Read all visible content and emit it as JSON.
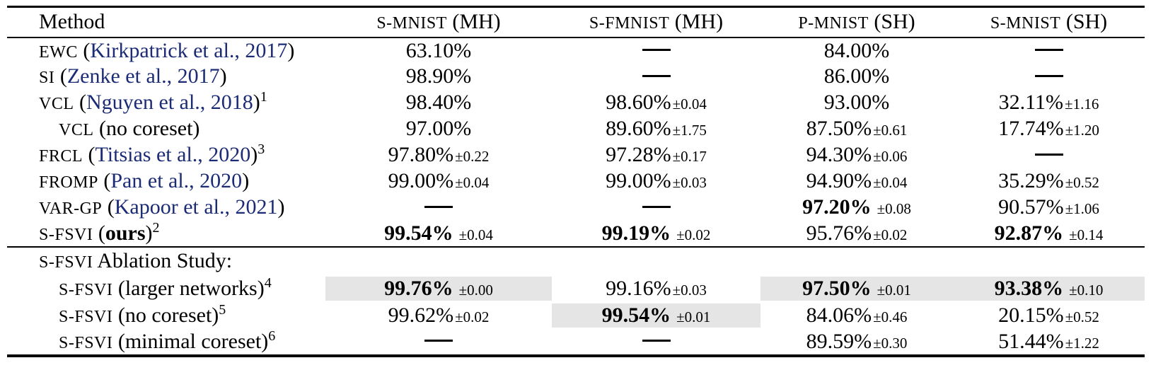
{
  "colors": {
    "citation": "#1b2b75",
    "highlight": "#e5e5e5",
    "rule": "#000000"
  },
  "header": {
    "method_label": "Method",
    "columns": [
      {
        "acronym": "S-MNIST",
        "suffix": "(MH)"
      },
      {
        "acronym": "S-FMNIST",
        "suffix": "(MH)"
      },
      {
        "acronym": "P-MNIST",
        "suffix": "(SH)"
      },
      {
        "acronym": "S-MNIST",
        "suffix": "(SH)"
      }
    ]
  },
  "main_rows": [
    {
      "indent": false,
      "method": [
        {
          "text": "EWC",
          "style": "sc"
        },
        {
          "text": " (",
          "style": "plain"
        },
        {
          "text": "Kirkpatrick et al., 2017",
          "style": "cite"
        },
        {
          "text": ")",
          "style": "plain"
        }
      ],
      "cells": [
        {
          "text": "63.10%"
        },
        {
          "text": "—",
          "dash": true
        },
        {
          "text": "84.00%"
        },
        {
          "text": "—",
          "dash": true
        }
      ]
    },
    {
      "indent": false,
      "method": [
        {
          "text": "SI",
          "style": "sc"
        },
        {
          "text": " (",
          "style": "plain"
        },
        {
          "text": "Zenke et al., 2017",
          "style": "cite"
        },
        {
          "text": ")",
          "style": "plain"
        }
      ],
      "cells": [
        {
          "text": "98.90%"
        },
        {
          "text": "—",
          "dash": true
        },
        {
          "text": "86.00%"
        },
        {
          "text": "—",
          "dash": true
        }
      ]
    },
    {
      "indent": false,
      "method": [
        {
          "text": "VCL",
          "style": "sc"
        },
        {
          "text": " (",
          "style": "plain"
        },
        {
          "text": "Nguyen et al., 2018",
          "style": "cite"
        },
        {
          "text": ")",
          "style": "plain"
        },
        {
          "text": "1",
          "style": "sup"
        }
      ],
      "cells": [
        {
          "text": "98.40%"
        },
        {
          "text": "98.60%",
          "pm": "±0.04"
        },
        {
          "text": "93.00%"
        },
        {
          "text": "32.11%",
          "pm": "±1.16"
        }
      ]
    },
    {
      "indent": true,
      "method": [
        {
          "text": "VCL",
          "style": "sc"
        },
        {
          "text": " (no coreset)",
          "style": "plain"
        }
      ],
      "cells": [
        {
          "text": "97.00%"
        },
        {
          "text": "89.60%",
          "pm": "±1.75"
        },
        {
          "text": "87.50%",
          "pm": "±0.61"
        },
        {
          "text": "17.74%",
          "pm": "±1.20"
        }
      ]
    },
    {
      "indent": false,
      "method": [
        {
          "text": "FRCL",
          "style": "sc"
        },
        {
          "text": " (",
          "style": "plain"
        },
        {
          "text": "Titsias et al., 2020",
          "style": "cite"
        },
        {
          "text": ")",
          "style": "plain"
        },
        {
          "text": "3",
          "style": "sup"
        }
      ],
      "cells": [
        {
          "text": "97.80%",
          "pm": "±0.22"
        },
        {
          "text": "97.28%",
          "pm": "±0.17"
        },
        {
          "text": "94.30%",
          "pm": "±0.06"
        },
        {
          "text": "—",
          "dash": true
        }
      ]
    },
    {
      "indent": false,
      "method": [
        {
          "text": "FROMP",
          "style": "sc"
        },
        {
          "text": " (",
          "style": "plain"
        },
        {
          "text": "Pan et al., 2020",
          "style": "cite"
        },
        {
          "text": ")",
          "style": "plain"
        }
      ],
      "cells": [
        {
          "text": "99.00%",
          "pm": "±0.04"
        },
        {
          "text": "99.00%",
          "pm": "±0.03"
        },
        {
          "text": "94.90%",
          "pm": "±0.04"
        },
        {
          "text": "35.29%",
          "pm": "±0.52"
        }
      ]
    },
    {
      "indent": false,
      "method": [
        {
          "text": "VAR-GP",
          "style": "sc"
        },
        {
          "text": " (",
          "style": "plain"
        },
        {
          "text": "Kapoor et al., 2021",
          "style": "cite"
        },
        {
          "text": ")",
          "style": "plain"
        }
      ],
      "cells": [
        {
          "text": "—",
          "dash": true
        },
        {
          "text": "—",
          "dash": true
        },
        {
          "text": "97.20%",
          "pm": "±0.08",
          "bold": true
        },
        {
          "text": "90.57%",
          "pm": "±1.06"
        }
      ]
    },
    {
      "indent": false,
      "method": [
        {
          "text": "S-FSVI",
          "style": "sc"
        },
        {
          "text": " (",
          "style": "plain"
        },
        {
          "text": "ours",
          "style": "bold"
        },
        {
          "text": ")",
          "style": "plain"
        },
        {
          "text": "2",
          "style": "sup"
        }
      ],
      "cells": [
        {
          "text": "99.54%",
          "pm": "±0.04",
          "bold": true
        },
        {
          "text": "99.19%",
          "pm": "±0.02",
          "bold": true
        },
        {
          "text": "95.76%",
          "pm": "±0.02"
        },
        {
          "text": "92.87%",
          "pm": "±0.14",
          "bold": true
        }
      ]
    }
  ],
  "ablation": {
    "section_header": [
      {
        "text": "S-FSVI",
        "style": "sc"
      },
      {
        "text": " Ablation Study:",
        "style": "plain"
      }
    ],
    "rows": [
      {
        "indent": true,
        "method": [
          {
            "text": "S-FSVI",
            "style": "sc"
          },
          {
            "text": " (larger networks)",
            "style": "plain"
          },
          {
            "text": "4",
            "style": "sup"
          }
        ],
        "cells": [
          {
            "text": "99.76%",
            "pm": "±0.00",
            "bold": true,
            "hl": true
          },
          {
            "text": "99.16%",
            "pm": "±0.03"
          },
          {
            "text": "97.50%",
            "pm": "±0.01",
            "bold": true,
            "hl": true
          },
          {
            "text": "93.38%",
            "pm": "±0.10",
            "bold": true,
            "hl": true
          }
        ]
      },
      {
        "indent": true,
        "method": [
          {
            "text": "S-FSVI",
            "style": "sc"
          },
          {
            "text": " (no coreset)",
            "style": "plain"
          },
          {
            "text": "5",
            "style": "sup"
          }
        ],
        "cells": [
          {
            "text": "99.62%",
            "pm": "±0.02"
          },
          {
            "text": "99.54%",
            "pm": "±0.01",
            "bold": true,
            "hl": true
          },
          {
            "text": "84.06%",
            "pm": "±0.46"
          },
          {
            "text": "20.15%",
            "pm": "±0.52"
          }
        ]
      },
      {
        "indent": true,
        "method": [
          {
            "text": "S-FSVI",
            "style": "sc"
          },
          {
            "text": " (minimal coreset)",
            "style": "plain"
          },
          {
            "text": "6",
            "style": "sup"
          }
        ],
        "cells": [
          {
            "text": "—",
            "dash": true
          },
          {
            "text": "—",
            "dash": true
          },
          {
            "text": "89.59%",
            "pm": "±0.30"
          },
          {
            "text": "51.44%",
            "pm": "±1.22"
          }
        ]
      }
    ]
  }
}
